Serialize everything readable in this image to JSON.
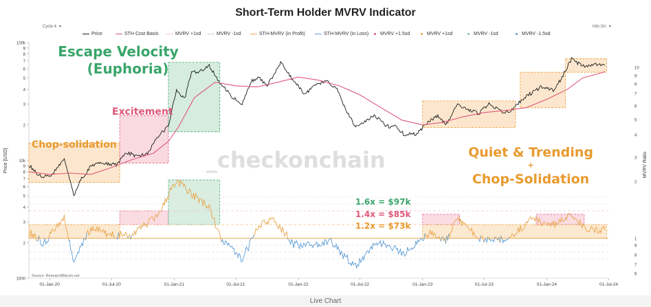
{
  "title": "Short-Term Holder MVRV Indicator",
  "controls": {
    "cycle_select": "Cycle 4",
    "info_toggle": "Info On",
    "dropdown_arrow": "▾"
  },
  "legend": [
    {
      "label": "Price",
      "color": "#1a1a1a",
      "kind": "line"
    },
    {
      "label": "STH Cost Basis",
      "color": "#e0577a",
      "kind": "line"
    },
    {
      "label": "MVRV +1sd",
      "color": "#f4b6c4",
      "kind": "dash"
    },
    {
      "label": "MVRV -1sd",
      "color": "#c9c9c9",
      "kind": "dash"
    },
    {
      "label": "STH-MVRV (in Profit)",
      "color": "#e8a44a",
      "kind": "line"
    },
    {
      "label": "STH-MVRV (in Loss)",
      "color": "#5b9bd5",
      "kind": "line"
    },
    {
      "label": "MVRV +1.5sd",
      "color": "#e0577a",
      "kind": "dot"
    },
    {
      "label": "MVRV +1sd",
      "color": "#f0a040",
      "kind": "dot"
    },
    {
      "label": "MVRV -1sd",
      "color": "#7fbf9f",
      "kind": "dot"
    },
    {
      "label": "MVRV -1.5sd",
      "color": "#5b9bd5",
      "kind": "dot"
    }
  ],
  "source": "Source: ResearchBitcoin.net",
  "watermark": "_checkonchain",
  "footer_label": "Live Chart",
  "annotations": {
    "escape_line1": "Escape Velocity",
    "escape_line2": "(Euphoria)",
    "excitement": "Excitement",
    "chop": "Chop-solidation",
    "quiet_line1": "Quiet & Trending",
    "quiet_plus": "+",
    "quiet_line2": "Chop-Solidation",
    "level_16": "1.6x = $97k",
    "level_14": "1.4x = $85k",
    "level_12": "1.2x = $73k"
  },
  "colors": {
    "escape": "#3aa56b",
    "excitement": "#e0577a",
    "chop": "#e99a2e",
    "quiet": "#e99a2e",
    "zone_green": "#cfe9d8",
    "zone_pink": "#f9d3dc",
    "zone_orange": "#fbe3c6",
    "price": "#1a1a1a",
    "cost_basis": "#e0577a",
    "profit": "#e8a44a",
    "loss": "#5b9bd5"
  },
  "chart_data": {
    "type": "line",
    "ylabel": "Price [USD]",
    "y2label": "MVRV Ratio",
    "yscale": "log",
    "ylim": [
      1000,
      100000
    ],
    "y_ticks": [
      "1000",
      "2",
      "3",
      "4",
      "5",
      "6",
      "7",
      "8",
      "9",
      "10k",
      "2",
      "3",
      "4",
      "5",
      "6",
      "7",
      "8",
      "9",
      "100k"
    ],
    "y2_ticks_upper": [
      "4",
      "5",
      "6",
      "7",
      "8",
      "9",
      "10",
      "2",
      "3"
    ],
    "y2_ticks_lower": [
      "6",
      "7",
      "8",
      "9",
      "1"
    ],
    "x_ticks": [
      "01-Jan-20",
      "01-Jul-20",
      "01-Jan-21",
      "01-Jul-21",
      "01-Jan-22",
      "01-Jul-22",
      "01-Jan-23",
      "01-Jul-23",
      "01-Jan-24",
      "01-Jul-24"
    ],
    "x_range": [
      "2019-11-01",
      "2024-06-30"
    ],
    "series": [
      {
        "name": "Price",
        "x": [
          "2019-11-01",
          "2019-12-01",
          "2020-01-01",
          "2020-02-13",
          "2020-03-12",
          "2020-04-01",
          "2020-05-01",
          "2020-06-01",
          "2020-07-15",
          "2020-08-15",
          "2020-09-15",
          "2020-10-15",
          "2020-11-15",
          "2020-12-15",
          "2021-01-08",
          "2021-02-01",
          "2021-02-21",
          "2021-03-15",
          "2021-04-14",
          "2021-05-15",
          "2021-06-20",
          "2021-07-20",
          "2021-08-15",
          "2021-09-07",
          "2021-10-01",
          "2021-11-10",
          "2021-12-15",
          "2022-01-22",
          "2022-02-15",
          "2022-03-28",
          "2022-04-25",
          "2022-05-10",
          "2022-06-18",
          "2022-07-15",
          "2022-08-15",
          "2022-09-15",
          "2022-10-15",
          "2022-11-09",
          "2022-12-15",
          "2023-01-20",
          "2023-02-15",
          "2023-03-10",
          "2023-04-14",
          "2023-05-15",
          "2023-06-15",
          "2023-07-15",
          "2023-08-20",
          "2023-09-15",
          "2023-10-24",
          "2023-11-15",
          "2023-12-15",
          "2024-01-23",
          "2024-02-15",
          "2024-03-14",
          "2024-04-15",
          "2024-05-15",
          "2024-06-20"
        ],
        "values": [
          9200,
          7400,
          7200,
          10300,
          5000,
          6800,
          8900,
          9500,
          9200,
          11700,
          10800,
          11500,
          16000,
          19500,
          40000,
          33500,
          56000,
          56000,
          63000,
          46000,
          34500,
          30000,
          46500,
          51000,
          43000,
          67500,
          48500,
          36000,
          44000,
          47000,
          40000,
          31000,
          19000,
          21500,
          24000,
          19500,
          19300,
          16500,
          16800,
          21500,
          24000,
          20000,
          30000,
          27000,
          25000,
          30500,
          26000,
          25800,
          33500,
          37000,
          42000,
          39500,
          51000,
          73000,
          63000,
          65000,
          64500
        ]
      },
      {
        "name": "STH Cost Basis",
        "x": [
          "2019-11-01",
          "2020-01-01",
          "2020-03-01",
          "2020-05-01",
          "2020-07-01",
          "2020-09-01",
          "2020-11-01",
          "2020-12-15",
          "2021-01-15",
          "2021-03-01",
          "2021-05-01",
          "2021-07-01",
          "2021-09-01",
          "2021-11-01",
          "2022-01-01",
          "2022-03-01",
          "2022-05-01",
          "2022-07-01",
          "2022-09-01",
          "2022-11-01",
          "2023-01-01",
          "2023-03-01",
          "2023-05-01",
          "2023-07-01",
          "2023-09-01",
          "2023-11-01",
          "2024-01-01",
          "2024-03-01",
          "2024-04-15",
          "2024-06-20"
        ],
        "values": [
          8000,
          7600,
          7800,
          7600,
          8700,
          10200,
          11500,
          14500,
          19500,
          34000,
          46000,
          43000,
          42000,
          46000,
          51000,
          48000,
          43000,
          36000,
          28000,
          22000,
          20000,
          21000,
          23500,
          25500,
          26500,
          28000,
          33000,
          40000,
          50000,
          56500
        ]
      },
      {
        "name": "STH-MVRV",
        "x": [
          "2019-11-01",
          "2019-12-15",
          "2020-02-13",
          "2020-03-12",
          "2020-05-01",
          "2020-07-01",
          "2020-09-01",
          "2020-11-15",
          "2021-01-08",
          "2021-02-21",
          "2021-04-14",
          "2021-05-20",
          "2021-07-20",
          "2021-09-07",
          "2021-10-20",
          "2021-12-15",
          "2022-02-15",
          "2022-04-01",
          "2022-06-18",
          "2022-08-15",
          "2022-11-09",
          "2023-01-20",
          "2023-03-10",
          "2023-04-14",
          "2023-06-15",
          "2023-09-15",
          "2023-11-15",
          "2024-01-15",
          "2024-03-14",
          "2024-04-20",
          "2024-06-20"
        ],
        "values": [
          1.1,
          0.92,
          1.3,
          0.65,
          1.15,
          1.05,
          1.04,
          1.35,
          1.85,
          1.65,
          1.45,
          0.98,
          0.7,
          1.18,
          1.3,
          0.92,
          0.88,
          0.97,
          0.58,
          0.95,
          0.78,
          1.08,
          0.95,
          1.3,
          1.0,
          0.98,
          1.3,
          1.18,
          1.35,
          1.15,
          1.12
        ]
      }
    ],
    "bands": [
      {
        "label": "Chop-solidation",
        "from": "2019-11-01",
        "to": "2020-07-25"
      },
      {
        "label": "Excitement",
        "from": "2020-07-25",
        "to": "2020-12-15"
      },
      {
        "label": "Escape Velocity (Euphoria)",
        "from": "2020-12-15",
        "to": "2021-05-15"
      },
      {
        "label": "Quiet & Trending",
        "from": "2023-01-01",
        "to": "2023-10-01"
      },
      {
        "label": "Quiet & Trending",
        "from": "2023-10-15",
        "to": "2024-02-25"
      },
      {
        "label": "Chop-Solidation",
        "from": "2024-02-25",
        "to": "2024-06-25"
      }
    ]
  }
}
